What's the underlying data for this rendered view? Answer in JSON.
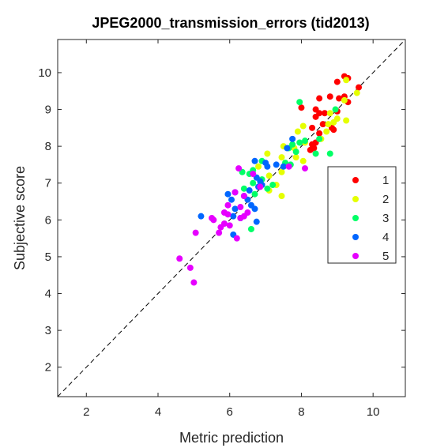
{
  "chart_data": {
    "type": "scatter",
    "title": "JPEG2000_transmission_errors (tid2013)",
    "xlabel": "Metric prediction",
    "ylabel": "Subjective score",
    "xlim": [
      1.2,
      10.9
    ],
    "ylim": [
      1.2,
      10.9
    ],
    "xticks": [
      "2",
      "4",
      "6",
      "8",
      "10"
    ],
    "yticks": [
      "2",
      "3",
      "4",
      "5",
      "6",
      "7",
      "8",
      "9",
      "10"
    ],
    "grid": false,
    "reference_line": "dashed diagonal y = x",
    "legend_position": "right",
    "series": [
      {
        "name": "1",
        "color": "#ff0000",
        "points": [
          [
            9.2,
            9.9
          ],
          [
            9.3,
            9.85
          ],
          [
            9.0,
            9.75
          ],
          [
            9.6,
            9.6
          ],
          [
            9.2,
            9.35
          ],
          [
            9.05,
            9.3
          ],
          [
            8.8,
            9.35
          ],
          [
            8.5,
            9.3
          ],
          [
            8.4,
            9.0
          ],
          [
            8.0,
            9.05
          ],
          [
            8.5,
            8.9
          ],
          [
            8.65,
            8.9
          ],
          [
            9.3,
            9.2
          ],
          [
            9.0,
            8.95
          ],
          [
            8.4,
            8.8
          ],
          [
            8.85,
            8.5
          ],
          [
            8.6,
            8.6
          ],
          [
            8.3,
            8.5
          ],
          [
            8.5,
            8.35
          ],
          [
            8.9,
            8.45
          ],
          [
            8.3,
            8.05
          ],
          [
            8.4,
            8.1
          ],
          [
            8.35,
            7.95
          ],
          [
            8.25,
            7.9
          ]
        ]
      },
      {
        "name": "2",
        "color": "#e5ff00",
        "points": [
          [
            9.25,
            9.8
          ],
          [
            9.55,
            9.45
          ],
          [
            9.2,
            9.25
          ],
          [
            8.8,
            8.9
          ],
          [
            9.0,
            8.75
          ],
          [
            8.9,
            8.65
          ],
          [
            9.25,
            8.7
          ],
          [
            8.75,
            8.6
          ],
          [
            8.05,
            8.55
          ],
          [
            8.7,
            8.4
          ],
          [
            8.55,
            8.2
          ],
          [
            7.9,
            8.4
          ],
          [
            8.1,
            8.1
          ],
          [
            7.5,
            8.0
          ],
          [
            7.8,
            7.95
          ],
          [
            7.45,
            7.7
          ],
          [
            7.05,
            7.8
          ],
          [
            7.85,
            7.7
          ],
          [
            7.45,
            7.3
          ],
          [
            7.1,
            7.2
          ],
          [
            7.3,
            6.95
          ],
          [
            7.1,
            6.8
          ],
          [
            7.45,
            6.65
          ],
          [
            6.8,
            7.45
          ],
          [
            8.05,
            7.6
          ]
        ]
      },
      {
        "name": "3",
        "color": "#00ff66",
        "points": [
          [
            7.95,
            9.2
          ],
          [
            8.95,
            9.0
          ],
          [
            8.5,
            8.2
          ],
          [
            8.1,
            8.15
          ],
          [
            7.95,
            8.1
          ],
          [
            7.75,
            8.05
          ],
          [
            7.65,
            7.95
          ],
          [
            7.85,
            7.85
          ],
          [
            8.4,
            7.8
          ],
          [
            8.8,
            7.8
          ],
          [
            7.7,
            7.5
          ],
          [
            6.9,
            7.6
          ],
          [
            7.55,
            7.55
          ],
          [
            6.65,
            7.35
          ],
          [
            6.35,
            7.3
          ],
          [
            6.55,
            7.25
          ],
          [
            6.9,
            7.1
          ],
          [
            6.65,
            7.0
          ],
          [
            7.2,
            6.95
          ],
          [
            7.05,
            6.85
          ],
          [
            6.4,
            6.85
          ],
          [
            6.7,
            6.7
          ],
          [
            6.6,
            5.75
          ]
        ]
      },
      {
        "name": "4",
        "color": "#0066ff",
        "points": [
          [
            7.75,
            8.2
          ],
          [
            7.6,
            7.95
          ],
          [
            6.7,
            7.6
          ],
          [
            7.0,
            7.55
          ],
          [
            7.05,
            7.45
          ],
          [
            7.3,
            7.5
          ],
          [
            7.5,
            7.45
          ],
          [
            6.75,
            7.15
          ],
          [
            6.85,
            7.05
          ],
          [
            6.9,
            6.95
          ],
          [
            6.8,
            6.9
          ],
          [
            6.55,
            6.8
          ],
          [
            6.15,
            6.75
          ],
          [
            5.95,
            6.7
          ],
          [
            6.4,
            6.65
          ],
          [
            6.5,
            6.55
          ],
          [
            6.6,
            6.4
          ],
          [
            6.05,
            6.55
          ],
          [
            6.15,
            6.3
          ],
          [
            6.7,
            6.3
          ],
          [
            6.1,
            6.1
          ],
          [
            5.2,
            6.1
          ],
          [
            6.3,
            6.05
          ],
          [
            6.75,
            5.95
          ],
          [
            6.1,
            5.6
          ]
        ]
      },
      {
        "name": "5",
        "color": "#e600ff",
        "points": [
          [
            7.65,
            7.45
          ],
          [
            8.1,
            7.4
          ],
          [
            6.25,
            7.4
          ],
          [
            6.65,
            7.25
          ],
          [
            6.85,
            6.9
          ],
          [
            6.15,
            6.75
          ],
          [
            6.4,
            6.65
          ],
          [
            5.95,
            6.4
          ],
          [
            6.3,
            6.35
          ],
          [
            6.5,
            6.2
          ],
          [
            5.85,
            6.2
          ],
          [
            5.95,
            6.15
          ],
          [
            6.4,
            6.1
          ],
          [
            6.3,
            6.05
          ],
          [
            5.5,
            6.05
          ],
          [
            5.55,
            6.0
          ],
          [
            5.85,
            5.9
          ],
          [
            6.0,
            5.85
          ],
          [
            5.75,
            5.8
          ],
          [
            5.7,
            5.65
          ],
          [
            5.05,
            5.65
          ],
          [
            6.2,
            5.5
          ],
          [
            4.6,
            4.95
          ],
          [
            4.9,
            4.7
          ],
          [
            5.0,
            4.3
          ]
        ]
      }
    ]
  }
}
